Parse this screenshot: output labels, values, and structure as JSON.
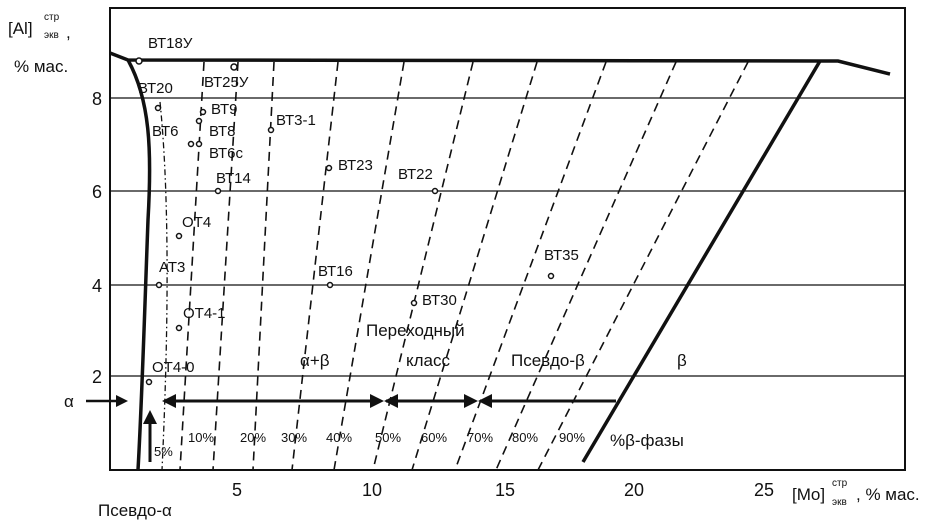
{
  "axes": {
    "y_title": "[Al]",
    "y_title_sup": "стр",
    "y_title_sub": "экв",
    "y_title_comma": ",",
    "y_unit": "% мас.",
    "x_title": "[Mo]",
    "x_title_sup": "стр",
    "x_title_sub": "экв",
    "x_unit": ", % мас.",
    "x_ticks": [
      "5",
      "10",
      "15",
      "20",
      "25"
    ],
    "y_ticks": [
      "2",
      "4",
      "6",
      "8"
    ]
  },
  "regions": {
    "alpha": "α",
    "pseudo_alpha": "Псевдо-α",
    "alpha_beta": "α+β",
    "transition_1": "Переходный",
    "transition_2": "класс",
    "pseudo_beta": "Псевдо-β",
    "beta": "β",
    "beta_phase": "%β-фазы"
  },
  "beta_percent_labels": [
    "5%",
    "10%",
    "20%",
    "30%",
    "40%",
    "50%",
    "60%",
    "70%",
    "80%",
    "90%"
  ],
  "alloys": [
    {
      "name": "ВТ18У",
      "mo": 1.0,
      "al": 8.8
    },
    {
      "name": "ВТ25У",
      "mo": 4.7,
      "al": 8.6
    },
    {
      "name": "ВТ20",
      "mo": 2.0,
      "al": 7.8
    },
    {
      "name": "ВТ9",
      "mo": 3.5,
      "al": 7.7
    },
    {
      "name": "ВТ8",
      "mo": 3.3,
      "al": 7.5
    },
    {
      "name": "ВТ6",
      "mo": 3.0,
      "al": 7.0
    },
    {
      "name": "ВТ6с",
      "mo": 3.3,
      "al": 7.0
    },
    {
      "name": "ВТ3-1",
      "mo": 6.1,
      "al": 7.3
    },
    {
      "name": "ВТ23",
      "mo": 8.3,
      "al": 6.5
    },
    {
      "name": "ВТ22",
      "mo": 12.3,
      "al": 6.0
    },
    {
      "name": "ВТ14",
      "mo": 4.0,
      "al": 6.0
    },
    {
      "name": "ОТ4",
      "mo": 2.0,
      "al": 5.0
    },
    {
      "name": "ВТ35",
      "mo": 16.7,
      "al": 4.2
    },
    {
      "name": "АТ3",
      "mo": 2.3,
      "al": 4.0
    },
    {
      "name": "ВТ16",
      "mo": 8.3,
      "al": 4.0
    },
    {
      "name": "ВТ30",
      "mo": 11.5,
      "al": 3.5
    },
    {
      "name": "ОТ4-1",
      "mo": 2.0,
      "al": 3.0
    },
    {
      "name": "ОТ4-0",
      "mo": 1.9,
      "al": 1.9
    }
  ]
}
